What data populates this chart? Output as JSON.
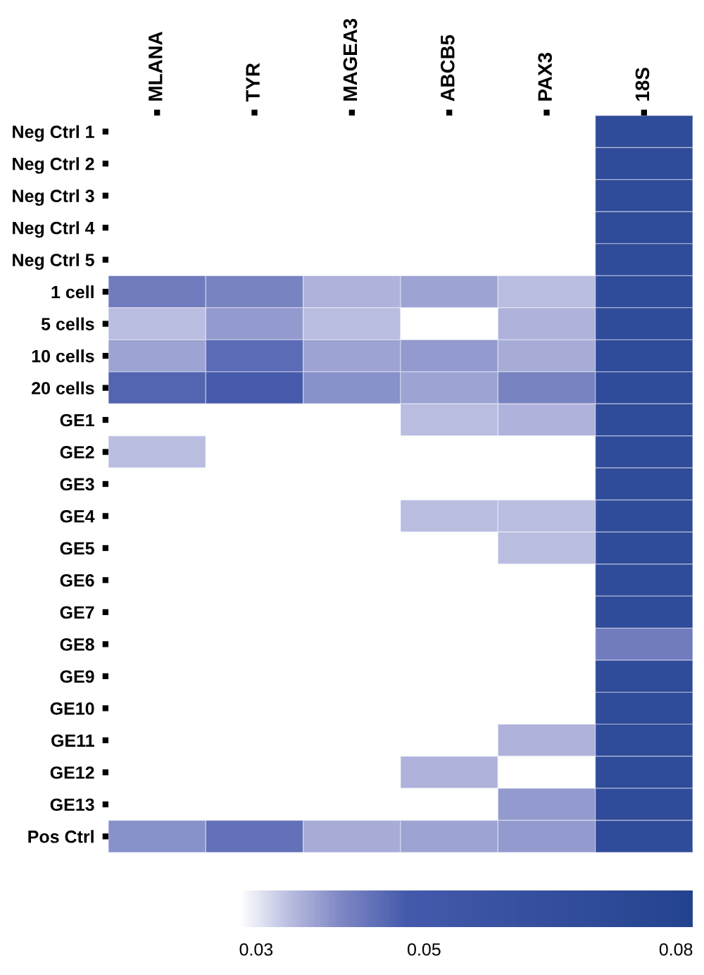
{
  "chart_data": {
    "type": "heatmap",
    "categories": [
      "MLANA",
      "TYR",
      "MAGEA3",
      "ABCB5",
      "PAX3",
      "18S"
    ],
    "y_categories": [
      "Neg Ctrl 1",
      "Neg Ctrl 2",
      "Neg Ctrl 3",
      "Neg Ctrl 4",
      "Neg Ctrl 5",
      "1 cell",
      "5 cells",
      "10 cells",
      "20 cells",
      "GE1",
      "GE2",
      "GE3",
      "GE4",
      "GE5",
      "GE6",
      "GE7",
      "GE8",
      "GE9",
      "GE10",
      "GE11",
      "GE12",
      "GE13",
      "Pos Ctrl"
    ],
    "cells": [
      [
        null,
        null,
        null,
        null,
        null,
        0.07
      ],
      [
        null,
        null,
        null,
        null,
        null,
        0.07
      ],
      [
        null,
        null,
        null,
        null,
        null,
        0.07
      ],
      [
        null,
        null,
        null,
        null,
        null,
        0.07
      ],
      [
        null,
        null,
        null,
        null,
        null,
        0.07
      ],
      [
        0.042,
        0.041,
        0.035,
        0.037,
        0.034,
        0.07
      ],
      [
        0.034,
        0.038,
        0.034,
        null,
        0.035,
        0.07
      ],
      [
        0.037,
        0.045,
        0.037,
        0.038,
        0.036,
        0.07
      ],
      [
        0.046,
        0.048,
        0.039,
        0.037,
        0.041,
        0.07
      ],
      [
        null,
        null,
        null,
        0.034,
        0.035,
        0.07
      ],
      [
        0.034,
        null,
        null,
        null,
        null,
        0.07
      ],
      [
        null,
        null,
        null,
        null,
        null,
        0.07
      ],
      [
        null,
        null,
        null,
        0.034,
        0.034,
        0.07
      ],
      [
        null,
        null,
        null,
        null,
        0.034,
        0.07
      ],
      [
        null,
        null,
        null,
        null,
        null,
        0.07
      ],
      [
        null,
        null,
        null,
        null,
        null,
        0.07
      ],
      [
        null,
        null,
        null,
        null,
        null,
        0.042
      ],
      [
        null,
        null,
        null,
        null,
        null,
        0.07
      ],
      [
        null,
        null,
        null,
        null,
        null,
        0.07
      ],
      [
        null,
        null,
        null,
        null,
        0.035,
        0.07
      ],
      [
        null,
        null,
        null,
        0.035,
        null,
        0.07
      ],
      [
        null,
        null,
        null,
        null,
        0.038,
        0.07
      ],
      [
        0.039,
        0.044,
        0.036,
        0.037,
        0.038,
        0.07
      ]
    ],
    "clim": [
      0.028,
      0.082
    ],
    "cticks": [
      0.03,
      0.05,
      0.08
    ],
    "grid": false
  }
}
